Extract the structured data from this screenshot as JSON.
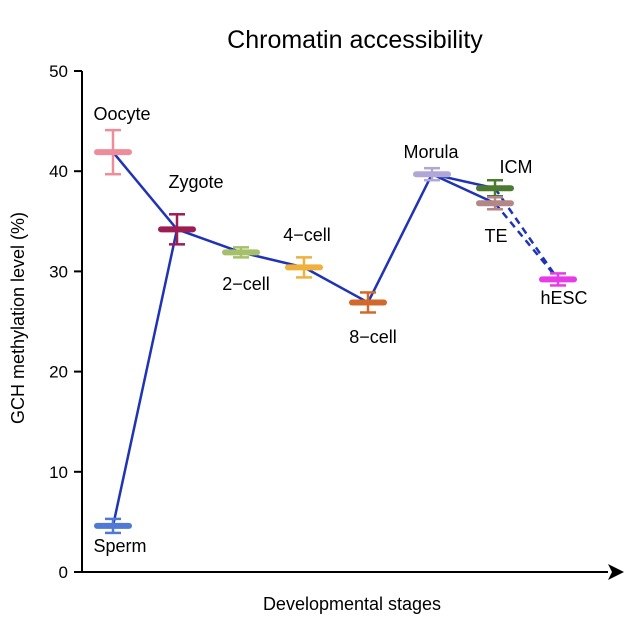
{
  "chart_data": {
    "type": "line",
    "title": "Chromatin accessibility",
    "xlabel": "Developmental stages",
    "ylabel": "GCH methylation level (%)",
    "ylim": [
      0,
      50
    ],
    "yticks": [
      "0",
      "10",
      "20",
      "30",
      "40",
      "50"
    ],
    "grid": false,
    "legend": "none",
    "points": [
      {
        "id": "oocyte",
        "label": "Oocyte",
        "stage": 1,
        "value": 41.9,
        "err": 2.2,
        "color": "#ef8c9a"
      },
      {
        "id": "sperm",
        "label": "Sperm",
        "stage": 1,
        "value": 4.6,
        "err": 0.7,
        "color": "#4f79d4"
      },
      {
        "id": "zygote",
        "label": "Zygote",
        "stage": 2,
        "value": 34.2,
        "err": 1.5,
        "color": "#9b1d54"
      },
      {
        "id": "2cell",
        "label": "2−cell",
        "stage": 3,
        "value": 31.9,
        "err": 0.5,
        "color": "#a6c06a"
      },
      {
        "id": "4cell",
        "label": "4−cell",
        "stage": 4,
        "value": 30.4,
        "err": 1.0,
        "color": "#f0b13c"
      },
      {
        "id": "8cell",
        "label": "8−cell",
        "stage": 5,
        "value": 26.9,
        "err": 1.0,
        "color": "#d2692c"
      },
      {
        "id": "morula",
        "label": "Morula",
        "stage": 6,
        "value": 39.7,
        "err": 0.6,
        "color": "#b0a7d6"
      },
      {
        "id": "icm",
        "label": "ICM",
        "stage": 7,
        "value": 38.3,
        "err": 0.8,
        "color": "#4b7a30"
      },
      {
        "id": "te",
        "label": "TE",
        "stage": 7,
        "value": 36.8,
        "err": 0.6,
        "color": "#b48787"
      },
      {
        "id": "hesc",
        "label": "hESC",
        "stage": 8,
        "value": 29.2,
        "err": 0.6,
        "color": "#e63be6"
      }
    ],
    "lines": [
      {
        "from": "sperm",
        "to": "zygote",
        "style": "solid"
      },
      {
        "from": "oocyte",
        "to": "zygote",
        "style": "solid"
      },
      {
        "from": "zygote",
        "to": "2cell",
        "style": "solid"
      },
      {
        "from": "2cell",
        "to": "4cell",
        "style": "solid"
      },
      {
        "from": "4cell",
        "to": "8cell",
        "style": "solid"
      },
      {
        "from": "8cell",
        "to": "morula",
        "style": "solid"
      },
      {
        "from": "morula",
        "to": "icm",
        "style": "solid"
      },
      {
        "from": "morula",
        "to": "te",
        "style": "solid"
      },
      {
        "from": "icm",
        "to": "hesc",
        "style": "dashed"
      },
      {
        "from": "te",
        "to": "hesc",
        "style": "dashed"
      }
    ],
    "line_color": "#1f33b5"
  }
}
